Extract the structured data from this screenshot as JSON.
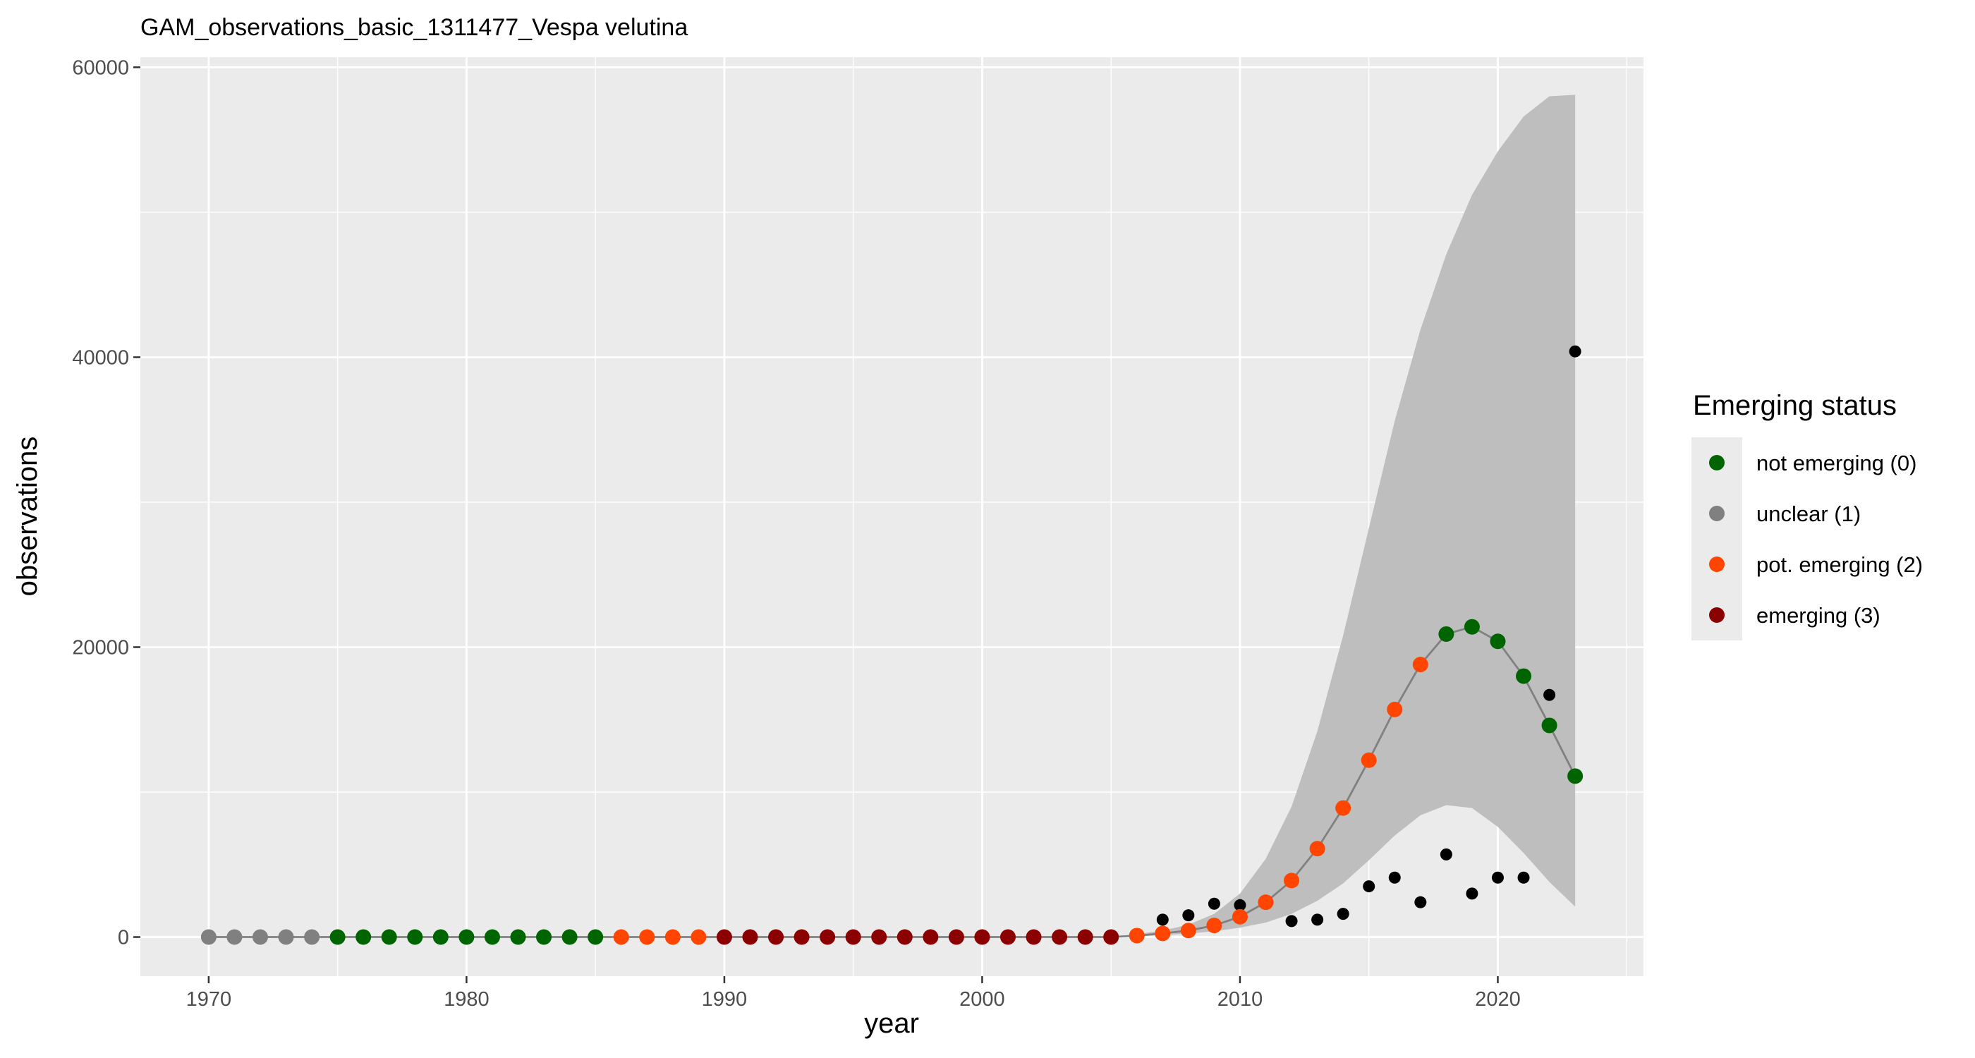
{
  "chart_data": {
    "type": "scatter",
    "title": "GAM_observations_basic_1311477_Vespa velutina",
    "xlabel": "year",
    "ylabel": "observations",
    "xlim": [
      1967.35,
      2025.65
    ],
    "ylim": [
      -2700,
      60700
    ],
    "x_ticks": [
      1970,
      1980,
      1990,
      2000,
      2010,
      2020
    ],
    "x_tick_labels": [
      "1970",
      "1980",
      "1990",
      "2000",
      "2010",
      "2020"
    ],
    "y_ticks": [
      0,
      20000,
      40000,
      60000
    ],
    "y_tick_labels": [
      "0",
      "20000",
      "40000",
      "60000"
    ],
    "grid": true,
    "legend": {
      "title": "Emerging status",
      "position": "right",
      "entries": [
        {
          "label": "not emerging (0)",
          "color": "#006400"
        },
        {
          "label": "unclear (1)",
          "color": "#808080"
        },
        {
          "label": "pot. emerging (2)",
          "color": "#FF4500"
        },
        {
          "label": "emerging (3)",
          "color": "#8B0000"
        }
      ]
    },
    "colors": {
      "panel_background": "#EBEBEB",
      "grid": "#FFFFFF",
      "ribbon": "#BEBEBE",
      "fit_line": "#808080",
      "observed": "#000000"
    },
    "fitted": {
      "x": [
        1970,
        1971,
        1972,
        1973,
        1974,
        1975,
        1976,
        1977,
        1978,
        1979,
        1980,
        1981,
        1982,
        1983,
        1984,
        1985,
        1986,
        1987,
        1988,
        1989,
        1990,
        1991,
        1992,
        1993,
        1994,
        1995,
        1996,
        1997,
        1998,
        1999,
        2000,
        2001,
        2002,
        2003,
        2004,
        2005,
        2006,
        2007,
        2008,
        2009,
        2010,
        2011,
        2012,
        2013,
        2014,
        2015,
        2016,
        2017,
        2018,
        2019,
        2020,
        2021,
        2022,
        2023
      ],
      "y": [
        0,
        0,
        0,
        0,
        0,
        0,
        0,
        0,
        0,
        0,
        0,
        0,
        0,
        0,
        0,
        0,
        0,
        0,
        0,
        0,
        0,
        0,
        0,
        0,
        0,
        0,
        0,
        0,
        0,
        0,
        0,
        0,
        0,
        0,
        0,
        0,
        100,
        250,
        450,
        800,
        1400,
        2400,
        3900,
        6100,
        8900,
        12200,
        15700,
        18800,
        20900,
        21400,
        20400,
        18000,
        14600,
        11100
      ],
      "status": [
        1,
        1,
        1,
        1,
        1,
        0,
        0,
        0,
        0,
        0,
        0,
        0,
        0,
        0,
        0,
        0,
        2,
        2,
        2,
        2,
        3,
        3,
        3,
        3,
        3,
        3,
        3,
        3,
        3,
        3,
        3,
        3,
        3,
        3,
        3,
        3,
        2,
        2,
        2,
        2,
        2,
        2,
        2,
        2,
        2,
        2,
        2,
        2,
        0,
        0,
        0,
        0,
        0,
        0
      ],
      "ci_lower": [
        0,
        0,
        0,
        0,
        0,
        0,
        0,
        0,
        0,
        0,
        0,
        0,
        0,
        0,
        0,
        0,
        0,
        0,
        0,
        0,
        0,
        0,
        0,
        0,
        0,
        0,
        0,
        0,
        0,
        0,
        0,
        0,
        0,
        0,
        0,
        0,
        50,
        130,
        230,
        400,
        650,
        1000,
        1600,
        2500,
        3700,
        5300,
        7000,
        8400,
        9100,
        8900,
        7600,
        5800,
        3800,
        2100
      ],
      "ci_upper": [
        0,
        0,
        0,
        0,
        0,
        0,
        0,
        0,
        0,
        0,
        0,
        0,
        0,
        0,
        0,
        0,
        0,
        0,
        0,
        0,
        0,
        0,
        0,
        0,
        0,
        0,
        0,
        0,
        0,
        0,
        0,
        0,
        0,
        0,
        0,
        0,
        200,
        450,
        850,
        1600,
        3000,
        5400,
        9000,
        14200,
        20800,
        28200,
        35600,
        41900,
        47100,
        51200,
        54200,
        56600,
        58000,
        58100
      ]
    },
    "observed": {
      "x": [
        2007,
        2008,
        2009,
        2010,
        2012,
        2013,
        2014,
        2015,
        2016,
        2017,
        2018,
        2019,
        2020,
        2021,
        2022,
        2023
      ],
      "y": [
        1200,
        1500,
        2300,
        2200,
        1100,
        1200,
        1600,
        3500,
        4100,
        2400,
        5700,
        3000,
        4100,
        4100,
        16700,
        40400
      ]
    }
  }
}
